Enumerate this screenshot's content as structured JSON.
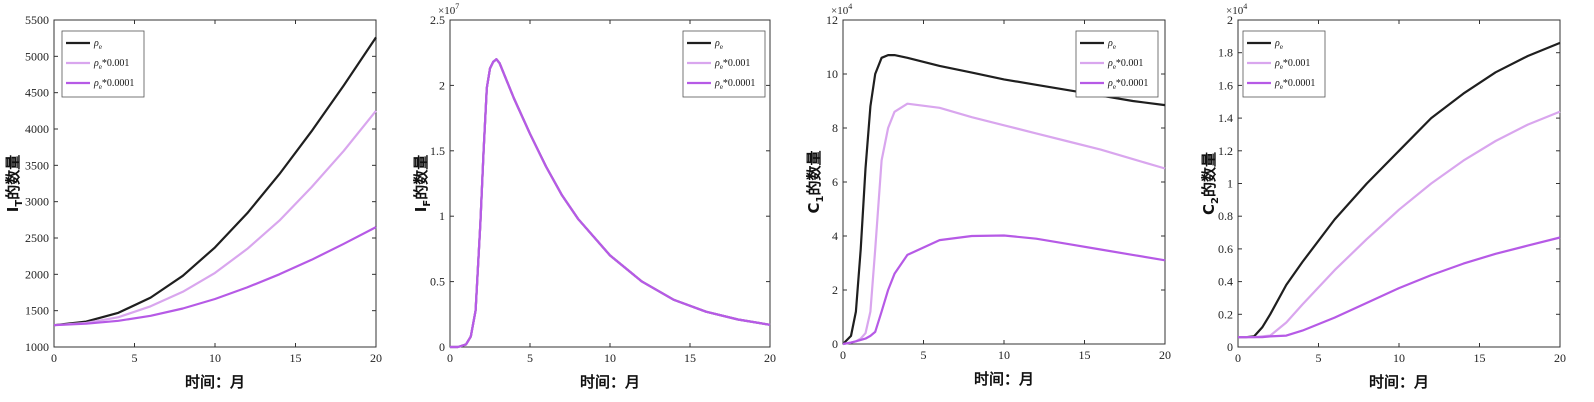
{
  "colors": {
    "black": "#1f1f1f",
    "light_purple": "#d9a6ee",
    "purple": "#b65ae6"
  },
  "chart_data": [
    {
      "type": "line",
      "ylabel": "I_T的数量",
      "ylabel_main": "I",
      "ylabel_sub": "T",
      "ylabel_rest": "的数量",
      "xlabel": "时间：月",
      "xlim": [
        0,
        20
      ],
      "ylim": [
        1000,
        5500
      ],
      "exponent": "",
      "xticks": [
        "0",
        "5",
        "10",
        "15",
        "20"
      ],
      "yticks": [
        "1000",
        "1500",
        "2000",
        "2500",
        "3000",
        "3500",
        "4000",
        "4500",
        "5000",
        "5500"
      ],
      "legend_position": "top-left",
      "x": [
        0,
        2,
        4,
        6,
        8,
        10,
        12,
        14,
        16,
        18,
        20
      ],
      "series": [
        {
          "name": "ρ_e",
          "color_key": "black",
          "values": [
            1300,
            1350,
            1470,
            1680,
            1980,
            2370,
            2840,
            3380,
            3970,
            4600,
            5260
          ]
        },
        {
          "name": "ρ_e*0.001",
          "color_key": "light_purple",
          "values": [
            1300,
            1330,
            1410,
            1560,
            1760,
            2020,
            2350,
            2740,
            3200,
            3700,
            4250
          ]
        },
        {
          "name": "ρ_e*0.0001",
          "color_key": "purple",
          "values": [
            1300,
            1320,
            1360,
            1430,
            1530,
            1660,
            1820,
            2000,
            2200,
            2420,
            2650
          ]
        }
      ]
    },
    {
      "type": "line",
      "ylabel": "I_F的数量",
      "ylabel_main": "I",
      "ylabel_sub": "F",
      "ylabel_rest": "的数量",
      "xlabel": "时间：月",
      "xlim": [
        0,
        20
      ],
      "ylim": [
        0,
        2.5
      ],
      "exponent": "×10^7",
      "exp_base": "×10",
      "exp_power": "7",
      "xticks": [
        "0",
        "5",
        "10",
        "15",
        "20"
      ],
      "yticks": [
        "0",
        "0.5",
        "1",
        "1.5",
        "2",
        "2.5"
      ],
      "legend_position": "top-right",
      "x": [
        0,
        0.5,
        1,
        1.3,
        1.6,
        1.9,
        2.1,
        2.3,
        2.5,
        2.7,
        2.9,
        3.1,
        3.5,
        4,
        5,
        6,
        7,
        8,
        10,
        12,
        14,
        16,
        18,
        20
      ],
      "series": [
        {
          "name": "ρ_e",
          "color_key": "black",
          "values": [
            0,
            0,
            0.02,
            0.08,
            0.28,
            0.95,
            1.5,
            1.98,
            2.13,
            2.18,
            2.2,
            2.17,
            2.05,
            1.9,
            1.63,
            1.38,
            1.16,
            0.98,
            0.7,
            0.5,
            0.36,
            0.27,
            0.21,
            0.17
          ]
        },
        {
          "name": "ρ_e*0.001",
          "color_key": "light_purple",
          "values": [
            0,
            0,
            0.02,
            0.08,
            0.28,
            0.95,
            1.5,
            1.98,
            2.13,
            2.18,
            2.2,
            2.17,
            2.05,
            1.9,
            1.63,
            1.38,
            1.16,
            0.98,
            0.7,
            0.5,
            0.36,
            0.27,
            0.21,
            0.17
          ]
        },
        {
          "name": "ρ_e*0.0001",
          "color_key": "purple",
          "values": [
            0,
            0,
            0.02,
            0.08,
            0.28,
            0.95,
            1.5,
            1.98,
            2.13,
            2.18,
            2.2,
            2.17,
            2.05,
            1.9,
            1.63,
            1.38,
            1.16,
            0.98,
            0.7,
            0.5,
            0.36,
            0.27,
            0.21,
            0.17
          ]
        }
      ]
    },
    {
      "type": "line",
      "ylabel": "C_1的数量",
      "ylabel_main": "C",
      "ylabel_sub": "1",
      "ylabel_rest": "的数量",
      "xlabel": "时间：月",
      "xlim": [
        0,
        20
      ],
      "ylim": [
        0,
        12
      ],
      "exponent": "×10^4",
      "exp_base": "×10",
      "exp_power": "4",
      "xticks": [
        "0",
        "5",
        "10",
        "15",
        "20"
      ],
      "yticks": [
        "0",
        "2",
        "4",
        "6",
        "8",
        "10",
        "12"
      ],
      "legend_position": "top-right",
      "x": [
        0,
        0.5,
        0.8,
        1.1,
        1.4,
        1.7,
        2,
        2.4,
        2.8,
        3.2,
        4,
        6,
        8,
        10,
        12,
        14,
        16,
        18,
        20
      ],
      "series": [
        {
          "name": "ρ_e",
          "color_key": "black",
          "values": [
            0,
            0.3,
            1.2,
            3.5,
            6.5,
            8.8,
            10.0,
            10.6,
            10.7,
            10.7,
            10.6,
            10.3,
            10.05,
            9.8,
            9.6,
            9.4,
            9.2,
            9.0,
            8.85
          ]
        },
        {
          "name": "ρ_e*0.001",
          "color_key": "light_purple",
          "values": [
            0,
            0.05,
            0.1,
            0.2,
            0.4,
            1.2,
            3.5,
            6.8,
            8.0,
            8.6,
            8.9,
            8.75,
            8.4,
            8.1,
            7.8,
            7.5,
            7.2,
            6.85,
            6.5
          ]
        },
        {
          "name": "ρ_e*0.0001",
          "color_key": "purple",
          "values": [
            0,
            0.05,
            0.1,
            0.15,
            0.2,
            0.3,
            0.45,
            1.2,
            2.0,
            2.6,
            3.3,
            3.85,
            4.0,
            4.02,
            3.9,
            3.7,
            3.5,
            3.3,
            3.1
          ]
        }
      ]
    },
    {
      "type": "line",
      "ylabel": "C_2的数量",
      "ylabel_main": "C",
      "ylabel_sub": "2",
      "ylabel_rest": "的数量",
      "xlabel": "时间：月",
      "xlim": [
        0,
        20
      ],
      "ylim": [
        0,
        2
      ],
      "exponent": "×10^4",
      "exp_base": "×10",
      "exp_power": "4",
      "xticks": [
        "0",
        "5",
        "10",
        "15",
        "20"
      ],
      "yticks": [
        "0",
        "0.2",
        "0.4",
        "0.6",
        "0.8",
        "1",
        "1.2",
        "1.4",
        "1.6",
        "1.8",
        "2"
      ],
      "legend_position": "top-left",
      "x": [
        0,
        0.5,
        1,
        1.5,
        2,
        3,
        4,
        6,
        8,
        10,
        12,
        14,
        16,
        18,
        20
      ],
      "series": [
        {
          "name": "ρ_e",
          "color_key": "black",
          "values": [
            0.06,
            0.06,
            0.065,
            0.12,
            0.2,
            0.38,
            0.52,
            0.78,
            1.0,
            1.2,
            1.4,
            1.55,
            1.68,
            1.78,
            1.86
          ]
        },
        {
          "name": "ρ_e*0.001",
          "color_key": "light_purple",
          "values": [
            0.06,
            0.06,
            0.06,
            0.065,
            0.07,
            0.15,
            0.26,
            0.47,
            0.66,
            0.84,
            1.0,
            1.14,
            1.26,
            1.36,
            1.44
          ]
        },
        {
          "name": "ρ_e*0.0001",
          "color_key": "purple",
          "values": [
            0.06,
            0.06,
            0.06,
            0.06,
            0.065,
            0.07,
            0.1,
            0.18,
            0.27,
            0.36,
            0.44,
            0.51,
            0.57,
            0.62,
            0.67
          ]
        }
      ]
    }
  ]
}
